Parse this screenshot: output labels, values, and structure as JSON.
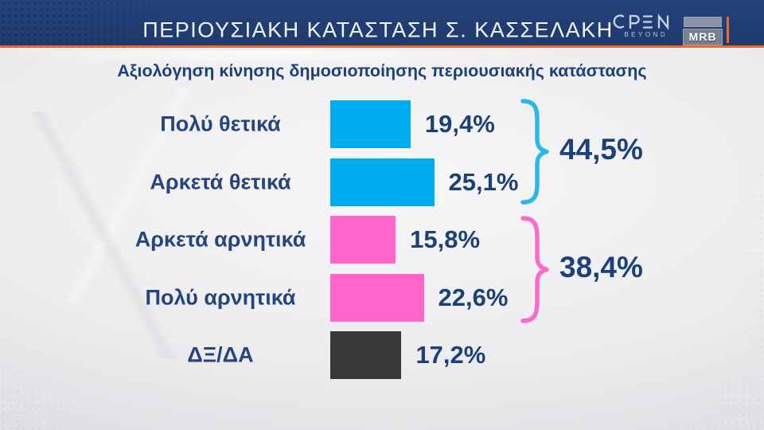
{
  "header": {
    "title": "ΠΕΡΙΟΥΣΙΑΚΗ ΚΑΤΑΣΤΑΣΗ Σ. ΚΑΣΣΕΛΑΚΗ",
    "open_logo": {
      "text": "OPEN",
      "subtext": "BEYOND"
    },
    "mrb_logo": "MRB",
    "bar_color": "#1e3a6d",
    "accent_color": "#ea6a2e"
  },
  "subtitle": "Αξιολόγηση κίνησης δημοσιοποίησης  περιουσιακής κατάστασης",
  "chart_data": {
    "type": "bar",
    "orientation": "horizontal",
    "title": "Αξιολόγηση κίνησης δημοσιοποίησης περιουσιακής κατάστασης",
    "categories": [
      "Πολύ θετικά",
      "Αρκετά θετικά",
      "Αρκετά αρνητικά",
      "Πολύ αρνητικά",
      "ΔΞ/ΔΑ"
    ],
    "values": [
      19.4,
      25.1,
      15.8,
      22.6,
      17.2
    ],
    "value_labels": [
      "19,4%",
      "25,1%",
      "15,8%",
      "22,6%",
      "17,2%"
    ],
    "bar_colors": [
      "#00aeef",
      "#00aeef",
      "#ff66c9",
      "#ff66c9",
      "#383838"
    ],
    "groups": [
      {
        "label": "44,5%",
        "rows": [
          0,
          1
        ],
        "color": "#2bb7ea"
      },
      {
        "label": "38,4%",
        "rows": [
          2,
          3
        ],
        "color": "#fb6bca"
      }
    ],
    "xlim": [
      0,
      30
    ],
    "grid": false,
    "legend": "none"
  },
  "colors": {
    "positive": "#00aeef",
    "negative": "#ff66c9",
    "neutral": "#383838",
    "text_navy": "#1d4078",
    "background": "#e9eaec"
  }
}
